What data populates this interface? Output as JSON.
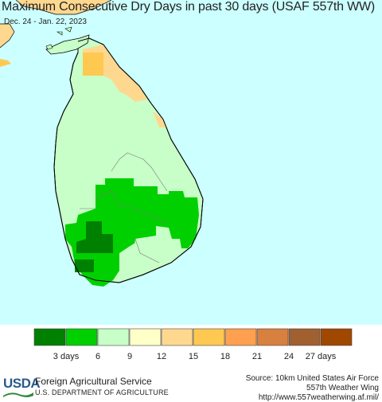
{
  "title": "Maximum Consecutive Dry Days in past 30 days (USAF 557th WW)",
  "subtitle": "Dec. 24 - Jan. 22, 2023",
  "legend": {
    "colors": [
      "#008000",
      "#00d000",
      "#c8ffc8",
      "#ffffc8",
      "#ffd890",
      "#ffc850",
      "#ffa050",
      "#d88040",
      "#a06030",
      "#a04800"
    ],
    "labels": [
      "3 days",
      "6",
      "9",
      "12",
      "15",
      "18",
      "21",
      "24",
      "27 days"
    ]
  },
  "map_colors": {
    "ocean": "#ccffff",
    "land_other": "#ffd890",
    "land_light": "#c8ffc8",
    "land_green": "#00d000",
    "land_dark": "#008000",
    "land_orange": "#ffc850",
    "land_peach": "#ffd890"
  },
  "footer": {
    "logo": "USDA",
    "agency": "Foreign Agricultural Service",
    "department": "U.S. DEPARTMENT OF AGRICULTURE",
    "source_line1": "Source: 10km United States Air Force",
    "source_line2": "557th Weather Wing",
    "source_line3": "http://www.557weatherwing.af.mil/"
  }
}
